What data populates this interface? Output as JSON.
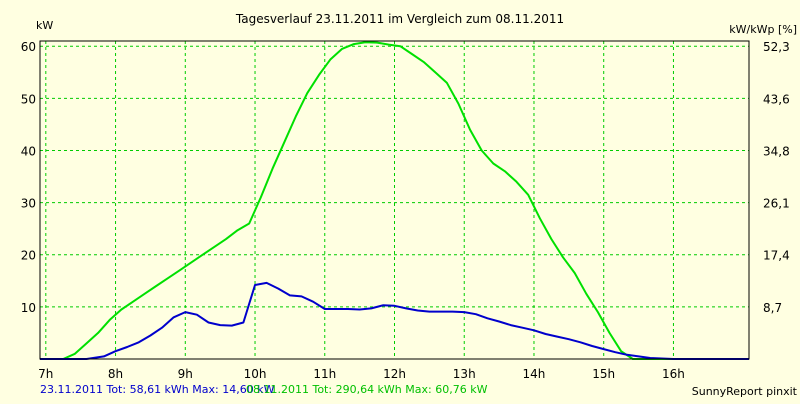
{
  "chart_data": {
    "type": "line",
    "title": "Tagesverlauf 23.11.2011 im Vergleich zum 08.11.2011",
    "ylabel_left": "kW",
    "ylabel_right": "kW/kWp [%]",
    "x_tick_labels": [
      "7h",
      "8h",
      "9h",
      "10h",
      "11h",
      "12h",
      "13h",
      "14h",
      "15h",
      "16h"
    ],
    "y_left_ticks": [
      10,
      20,
      30,
      40,
      50,
      60
    ],
    "y_right_ticks": [
      "8,7",
      "17,4",
      "26,1",
      "34,8",
      "43,6",
      "52,3"
    ],
    "xlim": [
      "6:55",
      "17:05"
    ],
    "ylim": [
      0,
      61
    ],
    "grid": true,
    "series": [
      {
        "name": "23.11.2011",
        "color": "#0000cc",
        "x": [
          "6:55",
          "7:35",
          "7:50",
          "8:00",
          "8:10",
          "8:20",
          "8:30",
          "8:40",
          "8:50",
          "9:00",
          "9:10",
          "9:20",
          "9:30",
          "9:40",
          "9:50",
          "10:00",
          "10:10",
          "10:20",
          "10:30",
          "10:40",
          "10:50",
          "11:00",
          "11:10",
          "11:20",
          "11:30",
          "11:40",
          "11:50",
          "12:00",
          "12:10",
          "12:20",
          "12:30",
          "12:40",
          "12:50",
          "13:00",
          "13:10",
          "13:20",
          "13:30",
          "13:40",
          "13:50",
          "14:00",
          "14:10",
          "14:20",
          "14:30",
          "14:40",
          "14:50",
          "15:00",
          "15:10",
          "15:20",
          "15:30",
          "15:40",
          "15:50",
          "16:00",
          "16:10",
          "16:20",
          "16:30",
          "16:40",
          "16:50",
          "17:05"
        ],
        "values": [
          0,
          0,
          0.5,
          1.5,
          2.3,
          3.2,
          4.5,
          6,
          8,
          9,
          8.5,
          7,
          6.5,
          6.4,
          7,
          14.2,
          14.6,
          13.5,
          12.2,
          12,
          11,
          9.6,
          9.6,
          9.6,
          9.5,
          9.7,
          10.3,
          10.2,
          9.7,
          9.3,
          9.1,
          9.1,
          9.1,
          9,
          8.6,
          7.8,
          7.2,
          6.5,
          6,
          5.5,
          4.8,
          4.3,
          3.8,
          3.2,
          2.5,
          1.9,
          1.3,
          0.8,
          0.5,
          0.2,
          0.1,
          0,
          0,
          0,
          0,
          0,
          0,
          0
        ]
      },
      {
        "name": "08.11.2011",
        "color": "#00e000",
        "x": [
          "6:55",
          "7:15",
          "7:25",
          "7:35",
          "7:45",
          "7:55",
          "8:05",
          "8:15",
          "8:25",
          "8:35",
          "8:45",
          "8:55",
          "9:05",
          "9:15",
          "9:25",
          "9:35",
          "9:45",
          "9:55",
          "10:05",
          "10:15",
          "10:25",
          "10:35",
          "10:45",
          "10:55",
          "11:05",
          "11:15",
          "11:25",
          "11:35",
          "11:45",
          "11:55",
          "12:05",
          "12:15",
          "12:25",
          "12:35",
          "12:45",
          "12:55",
          "13:05",
          "13:15",
          "13:25",
          "13:35",
          "13:45",
          "13:55",
          "14:05",
          "14:15",
          "14:25",
          "14:35",
          "14:45",
          "14:55",
          "15:05",
          "15:15",
          "15:25",
          "15:35",
          "15:45",
          "15:55",
          "16:05",
          "16:15",
          "16:25",
          "16:35",
          "17:05"
        ],
        "values": [
          0,
          0,
          1,
          3,
          5,
          7.5,
          9.5,
          11,
          12.5,
          14,
          15.5,
          17,
          18.5,
          20,
          21.5,
          23,
          24.7,
          26,
          31,
          36.5,
          41.5,
          46.5,
          51,
          54.5,
          57.5,
          59.5,
          60.4,
          60.76,
          60.7,
          60.3,
          60,
          58.5,
          57,
          55,
          53,
          49,
          44,
          40,
          37.5,
          36,
          34,
          31.5,
          27,
          23,
          19.5,
          16.5,
          12.5,
          9,
          5,
          1.5,
          0,
          0,
          0,
          0,
          0,
          0,
          0,
          0,
          0
        ]
      }
    ]
  },
  "footer": {
    "legend_blue": "23.11.2011 Tot: 58,61 kWh Max: 14,60 kW",
    "legend_green": "08.11.2011 Tot: 290,64 kWh Max: 60,76 kW",
    "credit": "SunnyReport pinxit"
  }
}
